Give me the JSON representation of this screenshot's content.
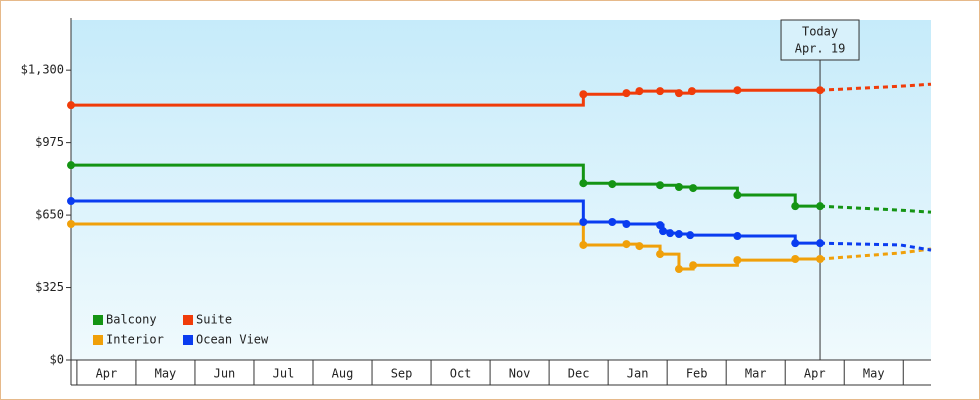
{
  "chart_data": {
    "type": "step-line",
    "xlim": [
      -0.1,
      14.47
    ],
    "xticks": [
      {
        "value": 0.5,
        "label": "Apr"
      },
      {
        "value": 1.5,
        "label": "May"
      },
      {
        "value": 2.5,
        "label": "Jun"
      },
      {
        "value": 3.5,
        "label": "Jul"
      },
      {
        "value": 4.5,
        "label": "Aug"
      },
      {
        "value": 5.5,
        "label": "Sep"
      },
      {
        "value": 6.5,
        "label": "Oct"
      },
      {
        "value": 7.5,
        "label": "Nov"
      },
      {
        "value": 8.5,
        "label": "Dec"
      },
      {
        "value": 9.5,
        "label": "Jan"
      },
      {
        "value": 10.5,
        "label": "Feb"
      },
      {
        "value": 11.5,
        "label": "Mar"
      },
      {
        "value": 12.5,
        "label": "Apr"
      },
      {
        "value": 13.5,
        "label": "May"
      }
    ],
    "ylim": [
      0,
      1525
    ],
    "yticks": [
      {
        "value": 0,
        "label": "$0"
      },
      {
        "value": 325,
        "label": "$325"
      },
      {
        "value": 650,
        "label": "$650"
      },
      {
        "value": 975,
        "label": "$975"
      },
      {
        "value": 1300,
        "label": "$1,300"
      }
    ],
    "annotation": {
      "x": 12.59,
      "lines": [
        "Today",
        "Apr. 19"
      ]
    },
    "forecast_x": [
      12.59,
      13.95,
      14.47
    ],
    "series": [
      {
        "name": "Balcony",
        "color": "#149414",
        "x": [
          -0.1,
          8.58,
          9.07,
          9.88,
          10.2,
          10.44,
          11.19,
          12.17,
          12.59
        ],
        "values": [
          874,
          793,
          789,
          784,
          776,
          771,
          740,
          690,
          690
        ],
        "forecast": [
          690,
          672,
          663
        ]
      },
      {
        "name": "Suite",
        "color": "#f03c0a",
        "x": [
          -0.1,
          8.58,
          9.31,
          9.53,
          9.88,
          10.2,
          10.42,
          11.19,
          12.59
        ],
        "values": [
          1143,
          1192,
          1197,
          1206,
          1206,
          1197,
          1206,
          1210,
          1210
        ],
        "forecast": [
          1210,
          1228,
          1237
        ]
      },
      {
        "name": "Interior",
        "color": "#f0a00a",
        "x": [
          -0.1,
          8.58,
          9.31,
          9.53,
          9.88,
          10.2,
          10.44,
          11.19,
          12.17,
          12.59
        ],
        "values": [
          610,
          516,
          520,
          511,
          475,
          408,
          425,
          448,
          453,
          453
        ],
        "forecast": [
          453,
          480,
          498
        ]
      },
      {
        "name": "Ocean View",
        "color": "#0a3cf0",
        "x": [
          -0.1,
          8.58,
          9.07,
          9.31,
          9.88,
          9.93,
          10.05,
          10.2,
          10.39,
          11.19,
          12.17,
          12.59
        ],
        "values": [
          713,
          619,
          619,
          610,
          605,
          578,
          569,
          565,
          560,
          556,
          524,
          524
        ],
        "forecast": [
          524,
          516,
          493
        ]
      }
    ]
  }
}
